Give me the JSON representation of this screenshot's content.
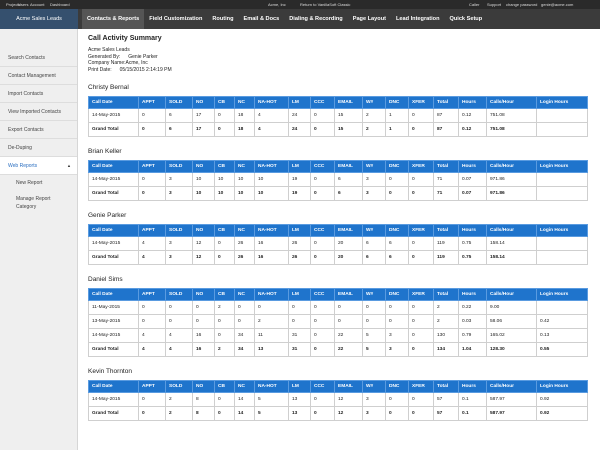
{
  "top_bar": {
    "left_links": [
      "Projects",
      "Users",
      "Account",
      "Dashboard"
    ],
    "center": [
      "Acme, Inc",
      "Return to VanillaSoft Classic"
    ],
    "right_links": [
      "Caller",
      "Support",
      "change password",
      "genie@acme.com"
    ]
  },
  "nav": {
    "brand": "Acme Sales Leads",
    "tabs": [
      "Contacts & Reports",
      "Field Customization",
      "Routing",
      "Email & Docs",
      "Dialing & Recording",
      "Page Layout",
      "Lead Integration",
      "Quick Setup"
    ],
    "active_tab": 0
  },
  "sidebar": {
    "items": [
      "Search Contacts",
      "Contact Management",
      "Import Contacts",
      "View Imported Contacts",
      "Export Contacts",
      "De-Duping",
      "Web Reports"
    ],
    "active_item": 6,
    "subitems": [
      "New Report",
      "Manage Report Category"
    ]
  },
  "report": {
    "title": "Call Activity Summary",
    "list_name": "Acme Sales Leads",
    "info": [
      [
        "Generated By:",
        "Genie Parker"
      ],
      [
        "Company Name:Acme, Inc"
      ],
      [
        "Print Date:",
        "05/15/2015 2:14:19 PM"
      ]
    ],
    "columns": [
      "Call Date",
      "APPT",
      "SOLD",
      "NO",
      "CB",
      "NC",
      "NA-HOT",
      "LM",
      "CCC",
      "EMAIL",
      "W#",
      "DNC",
      "XFER",
      "Total",
      "Hours",
      "Calls/Hour",
      "Login Hours"
    ],
    "sections": [
      {
        "name": "Christy Bernal",
        "rows": [
          [
            "14-May-2015",
            0,
            6,
            17,
            0,
            18,
            4,
            24,
            0,
            15,
            2,
            1,
            0,
            87,
            0.12,
            751.08,
            null
          ],
          [
            "Grand Total",
            0,
            6,
            17,
            0,
            18,
            4,
            24,
            0,
            15,
            2,
            1,
            0,
            87,
            0.12,
            751.08,
            null
          ]
        ]
      },
      {
        "name": "Brian Keller",
        "rows": [
          [
            "14-May-2015",
            0,
            3,
            10,
            10,
            10,
            10,
            19,
            0,
            6,
            3,
            0,
            0,
            71,
            0.07,
            971.86,
            null
          ],
          [
            "Grand Total",
            0,
            3,
            10,
            10,
            10,
            10,
            19,
            0,
            6,
            3,
            0,
            0,
            71,
            0.07,
            971.86,
            null
          ]
        ]
      },
      {
        "name": "Genie Parker",
        "rows": [
          [
            "14-May-2015",
            4,
            3,
            12,
            0,
            26,
            16,
            26,
            0,
            20,
            6,
            6,
            0,
            119,
            0.75,
            158.14,
            null
          ],
          [
            "Grand Total",
            4,
            3,
            12,
            0,
            26,
            16,
            26,
            0,
            20,
            6,
            6,
            0,
            119,
            0.75,
            158.14,
            null
          ]
        ]
      },
      {
        "name": "Daniel Sims",
        "rows": [
          [
            "11-May-2015",
            0,
            0,
            0,
            2,
            0,
            0,
            0,
            0,
            0,
            0,
            0,
            0,
            2,
            0.22,
            "9.00",
            null
          ],
          [
            "13-May-2015",
            0,
            0,
            0,
            0,
            0,
            2,
            0,
            0,
            0,
            0,
            0,
            0,
            2,
            0.03,
            58.06,
            0.42
          ],
          [
            "14-May-2015",
            4,
            4,
            16,
            0,
            34,
            11,
            31,
            0,
            22,
            5,
            3,
            0,
            130,
            0.79,
            165.02,
            0.13
          ],
          [
            "Grand Total",
            4,
            4,
            16,
            2,
            34,
            13,
            31,
            0,
            22,
            5,
            3,
            0,
            134,
            1.04,
            "128.30",
            0.55
          ]
        ]
      },
      {
        "name": "Kevin Thornton",
        "rows": [
          [
            "14-May-2015",
            0,
            2,
            8,
            0,
            14,
            5,
            13,
            0,
            12,
            3,
            0,
            0,
            57,
            0.1,
            587.97,
            0.92
          ],
          [
            "Grand Total",
            0,
            2,
            8,
            0,
            14,
            5,
            13,
            0,
            12,
            3,
            0,
            0,
            57,
            0.1,
            587.97,
            0.92
          ]
        ]
      }
    ]
  }
}
